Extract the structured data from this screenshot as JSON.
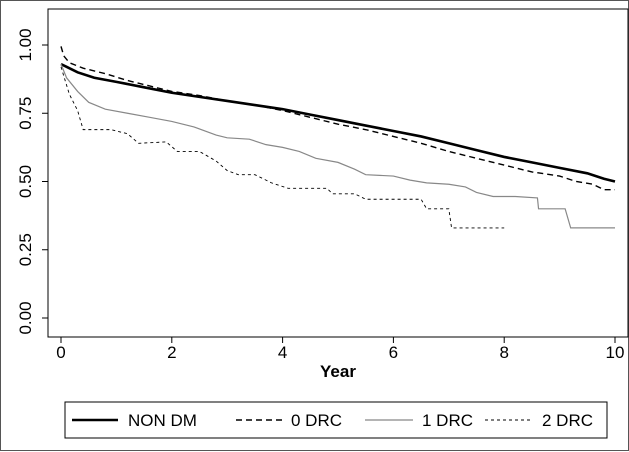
{
  "chart_data": {
    "type": "line",
    "title": "",
    "xlabel": "Year",
    "ylabel": "",
    "xlim": [
      0,
      10
    ],
    "ylim": [
      0,
      1
    ],
    "x_ticks": [
      "0",
      "2",
      "4",
      "6",
      "8",
      "10"
    ],
    "y_ticks": [
      "0.00",
      "0.25",
      "0.50",
      "0.75",
      "1.00"
    ],
    "grid": false,
    "legend_position": "bottom",
    "series": [
      {
        "name": "NON DM",
        "style": "thick-solid",
        "color": "#000000",
        "points": [
          [
            0,
            0.93
          ],
          [
            0.1,
            0.92
          ],
          [
            0.3,
            0.9
          ],
          [
            0.6,
            0.88
          ],
          [
            1.0,
            0.865
          ],
          [
            1.5,
            0.845
          ],
          [
            2,
            0.825
          ],
          [
            2.5,
            0.81
          ],
          [
            3,
            0.795
          ],
          [
            3.5,
            0.78
          ],
          [
            4,
            0.765
          ],
          [
            4.5,
            0.745
          ],
          [
            5,
            0.725
          ],
          [
            5.5,
            0.705
          ],
          [
            6,
            0.685
          ],
          [
            6.5,
            0.665
          ],
          [
            7,
            0.64
          ],
          [
            7.5,
            0.615
          ],
          [
            8,
            0.59
          ],
          [
            8.5,
            0.57
          ],
          [
            9,
            0.55
          ],
          [
            9.5,
            0.53
          ],
          [
            9.8,
            0.51
          ],
          [
            10,
            0.5
          ]
        ]
      },
      {
        "name": "0 DRC",
        "style": "dashed",
        "color": "#000000",
        "points": [
          [
            0,
            0.995
          ],
          [
            0.05,
            0.96
          ],
          [
            0.15,
            0.935
          ],
          [
            0.4,
            0.915
          ],
          [
            0.8,
            0.895
          ],
          [
            1.2,
            0.87
          ],
          [
            1.6,
            0.85
          ],
          [
            2,
            0.83
          ],
          [
            2.5,
            0.815
          ],
          [
            3,
            0.795
          ],
          [
            3.5,
            0.78
          ],
          [
            4,
            0.76
          ],
          [
            4.5,
            0.735
          ],
          [
            5,
            0.71
          ],
          [
            5.5,
            0.69
          ],
          [
            6,
            0.665
          ],
          [
            6.5,
            0.64
          ],
          [
            7,
            0.61
          ],
          [
            7.5,
            0.585
          ],
          [
            8,
            0.56
          ],
          [
            8.5,
            0.535
          ],
          [
            9,
            0.52
          ],
          [
            9.3,
            0.5
          ],
          [
            9.6,
            0.49
          ],
          [
            9.8,
            0.47
          ],
          [
            10,
            0.47
          ]
        ]
      },
      {
        "name": "1 DRC",
        "style": "thin-solid-gray",
        "color": "#888888",
        "points": [
          [
            0,
            0.93
          ],
          [
            0.1,
            0.88
          ],
          [
            0.3,
            0.83
          ],
          [
            0.5,
            0.79
          ],
          [
            0.8,
            0.765
          ],
          [
            1.2,
            0.75
          ],
          [
            1.6,
            0.735
          ],
          [
            2,
            0.72
          ],
          [
            2.4,
            0.7
          ],
          [
            2.8,
            0.67
          ],
          [
            3.0,
            0.66
          ],
          [
            3.4,
            0.655
          ],
          [
            3.7,
            0.635
          ],
          [
            4,
            0.625
          ],
          [
            4.3,
            0.61
          ],
          [
            4.6,
            0.585
          ],
          [
            5,
            0.57
          ],
          [
            5.3,
            0.545
          ],
          [
            5.5,
            0.525
          ],
          [
            6,
            0.52
          ],
          [
            6.3,
            0.505
          ],
          [
            6.6,
            0.495
          ],
          [
            7,
            0.49
          ],
          [
            7.3,
            0.48
          ],
          [
            7.5,
            0.46
          ],
          [
            7.8,
            0.445
          ],
          [
            8.2,
            0.445
          ],
          [
            8.6,
            0.44
          ],
          [
            8.62,
            0.4
          ],
          [
            9.1,
            0.4
          ],
          [
            9.2,
            0.33
          ],
          [
            10,
            0.33
          ]
        ]
      },
      {
        "name": "2 DRC",
        "style": "thin-dashed",
        "color": "#000000",
        "points": [
          [
            0,
            0.92
          ],
          [
            0.15,
            0.82
          ],
          [
            0.3,
            0.76
          ],
          [
            0.4,
            0.69
          ],
          [
            0.9,
            0.69
          ],
          [
            1.2,
            0.675
          ],
          [
            1.4,
            0.64
          ],
          [
            1.9,
            0.645
          ],
          [
            2.1,
            0.61
          ],
          [
            2.5,
            0.61
          ],
          [
            2.8,
            0.575
          ],
          [
            3,
            0.54
          ],
          [
            3.2,
            0.525
          ],
          [
            3.5,
            0.525
          ],
          [
            3.8,
            0.495
          ],
          [
            4.1,
            0.475
          ],
          [
            4.8,
            0.475
          ],
          [
            4.9,
            0.455
          ],
          [
            5.3,
            0.455
          ],
          [
            5.5,
            0.435
          ],
          [
            6.5,
            0.435
          ],
          [
            6.6,
            0.4
          ],
          [
            7,
            0.4
          ],
          [
            7.05,
            0.33
          ],
          [
            8,
            0.33
          ]
        ]
      }
    ]
  }
}
